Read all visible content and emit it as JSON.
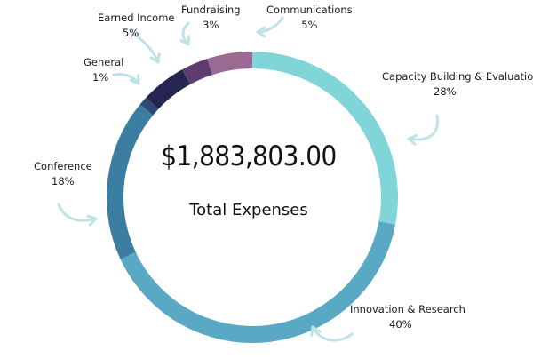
{
  "chart_data": {
    "type": "pie",
    "subtype": "donut",
    "total_value": "$1,883,803.00",
    "total_label": "Total Expenses",
    "slices": [
      {
        "name": "Capacity Building & Evaluation",
        "value": 28,
        "label": "28%",
        "color": "#80d5d9"
      },
      {
        "name": "Innovation & Research",
        "value": 40,
        "label": "40%",
        "color": "#5aa9c4"
      },
      {
        "name": "Conference",
        "value": 18,
        "label": "18%",
        "color": "#3c7ea2"
      },
      {
        "name": "General",
        "value": 1,
        "label": "1%",
        "color": "#2c4a78"
      },
      {
        "name": "Earned Income",
        "value": 5,
        "label": "5%",
        "color": "#252552"
      },
      {
        "name": "Fundraising",
        "value": 3,
        "label": "3%",
        "color": "#5f3d73"
      },
      {
        "name": "Communications",
        "value": 5,
        "label": "5%",
        "color": "#9b6a93"
      }
    ],
    "arrow_color": "#bfe2e6"
  }
}
